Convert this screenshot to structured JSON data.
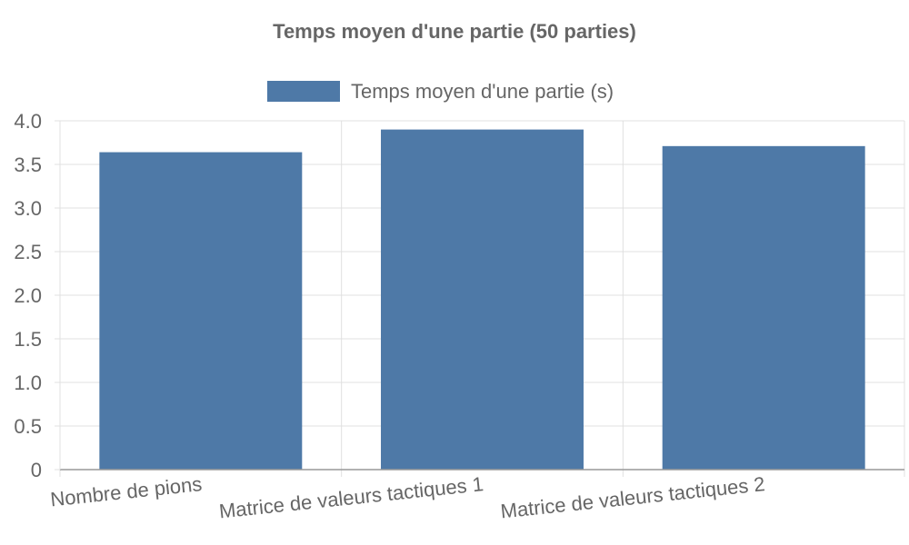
{
  "chart_data": {
    "type": "bar",
    "title": "Temps moyen d'une partie (50 parties)",
    "categories": [
      "Nombre de pions",
      "Matrice de valeurs tactiques 1",
      "Matrice de valeurs tactiques 2"
    ],
    "series": [
      {
        "name": "Temps moyen d'une partie (s)",
        "values": [
          3.64,
          3.9,
          3.71
        ],
        "color": "#4e79a7"
      }
    ],
    "ylim": [
      0,
      4.0
    ],
    "y_ticks": [
      "0",
      "0.5",
      "1.0",
      "1.5",
      "2.0",
      "2.5",
      "3.0",
      "3.5",
      "4.0"
    ],
    "grid": true,
    "legend_position": "top",
    "colors": {
      "grid": "#e0e0e0",
      "axis": "#999999",
      "text": "#666666"
    }
  }
}
